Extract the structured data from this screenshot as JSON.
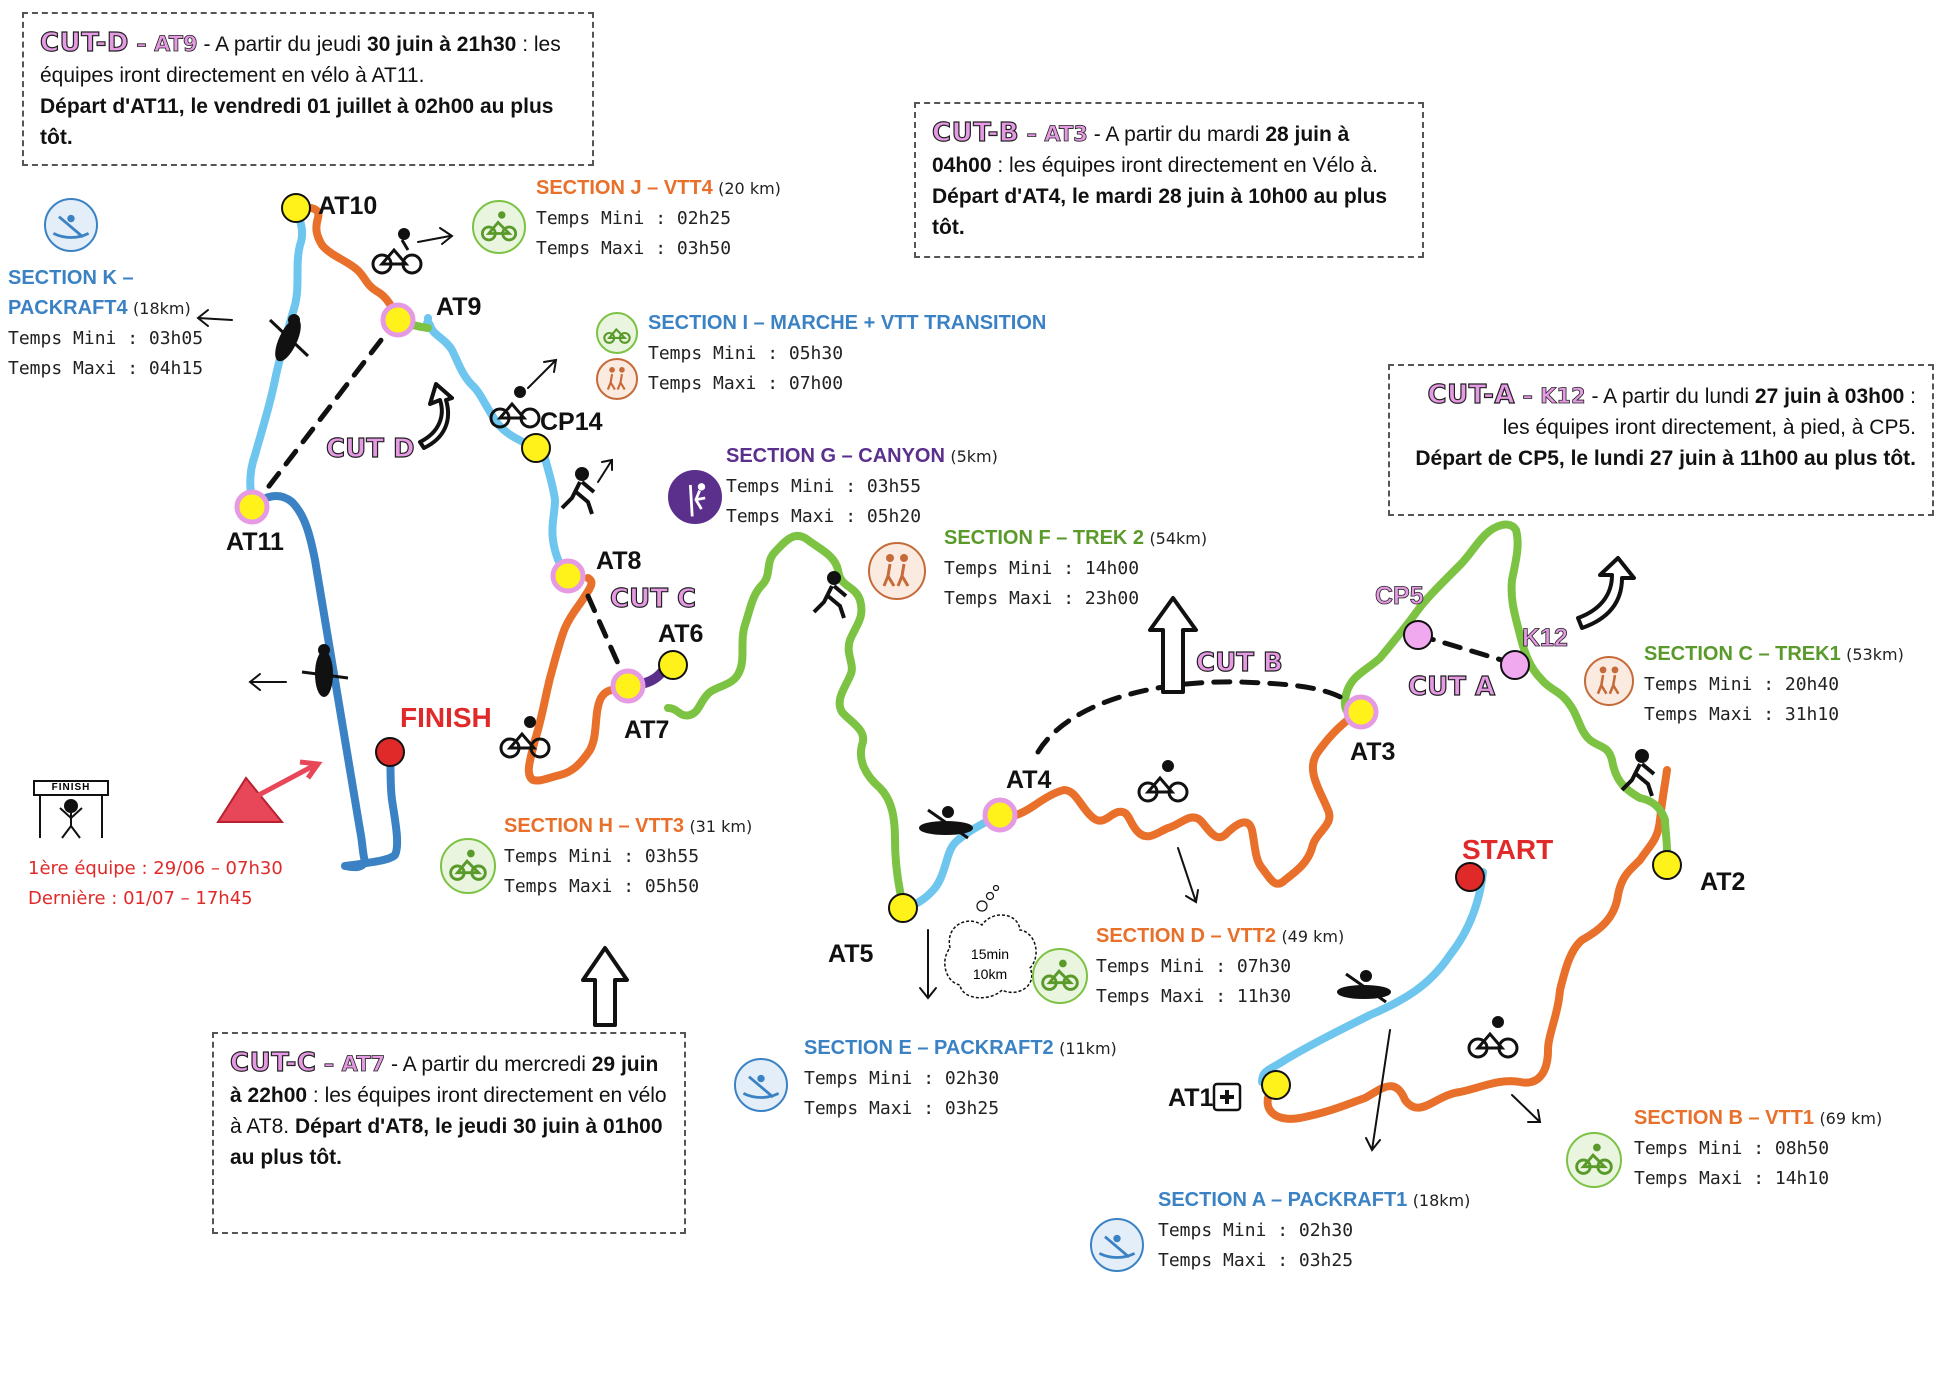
{
  "colors": {
    "trek": "#7cc243",
    "vtt": "#e8702a",
    "packraft": "#6ec6ef",
    "packraft_dark": "#3b82c4",
    "canyon": "#5b2f8c",
    "cut": "#e59ae3",
    "finish_red": "#e02a2a"
  },
  "points": {
    "at10": "AT10",
    "at9": "AT9",
    "cp14": "CP14",
    "at11": "AT11",
    "at8": "AT8",
    "at6": "AT6",
    "at7": "AT7",
    "at4": "AT4",
    "at5": "AT5",
    "at3": "AT3",
    "cp5": "CP5",
    "k12": "K12",
    "at2": "AT2",
    "at1": "AT1",
    "start": "START",
    "finish": "FINISH"
  },
  "cut_labels": {
    "a": "CUT A",
    "b": "CUT B",
    "c": "CUT C",
    "d": "CUT D"
  },
  "cut_boxes": {
    "d": {
      "title": "CUT-D",
      "sep": " – ",
      "point": "AT9",
      "text1": " - A partir du jeudi ",
      "bold1": "30 juin à 21h30",
      "text2": " : les équipes iront directement en vélo à AT11.",
      "bold2": "Départ d'AT11, le vendredi 01 juillet à 02h00 au plus tôt."
    },
    "b": {
      "title": "CUT-B",
      "sep": " – ",
      "point": "AT3",
      "text1": " - A partir du mardi ",
      "bold1": "28 juin à 04h00",
      "text2": " : les équipes iront directement en Vélo à.",
      "bold2": "Départ d'AT4, le mardi 28 juin à 10h00 au plus tôt."
    },
    "a": {
      "title": "CUT-A",
      "sep": " – ",
      "point": "K12",
      "text1": " - A partir du lundi ",
      "bold1": "27 juin à 03h00",
      "text2": " : les équipes iront directement, à pied, à CP5.",
      "bold2": "Départ de CP5, le lundi 27 juin à 11h00 au plus tôt."
    },
    "c": {
      "title": "CUT-C",
      "sep": " – ",
      "point": "AT7",
      "text1": " - A partir du mercredi ",
      "bold1": "29 juin à 22h00",
      "text2": " : les équipes iront directement en vélo à AT8. ",
      "bold2": "Départ d'AT8, le jeudi 30 juin à 01h00 au plus tôt."
    }
  },
  "sections": {
    "j": {
      "title": "SECTION J – VTT4",
      "dist": "(20 km)",
      "mini": "Temps Mini : 02h25",
      "maxi": "Temps Maxi : 03h50"
    },
    "k1": {
      "title": "SECTION K –",
      "title2": "PACKRAFT4",
      "dist": "(18km)",
      "mini": "Temps Mini : 03h05",
      "maxi": "Temps Maxi : 04h15"
    },
    "i": {
      "title": "SECTION I – MARCHE + VTT TRANSITION",
      "mini": "Temps Mini : 05h30",
      "maxi": "Temps Maxi : 07h00"
    },
    "g": {
      "title": "SECTION G – CANYON",
      "dist": "(5km)",
      "mini": "Temps Mini : 03h55",
      "maxi": "Temps Maxi : 05h20"
    },
    "f": {
      "title": "SECTION F – TREK 2",
      "dist": "(54km)",
      "mini": "Temps Mini : 14h00",
      "maxi": "Temps Maxi : 23h00"
    },
    "c": {
      "title": "SECTION C – TREK1",
      "dist": "(53km)",
      "mini": "Temps Mini : 20h40",
      "maxi": "Temps Maxi : 31h10"
    },
    "h": {
      "title": "SECTION H – VTT3",
      "dist": "(31 km)",
      "mini": "Temps Mini : 03h55",
      "maxi": "Temps Maxi : 05h50"
    },
    "d": {
      "title": "SECTION D – VTT2",
      "dist": "(49 km)",
      "mini": "Temps Mini : 07h30",
      "maxi": "Temps Maxi : 11h30"
    },
    "e": {
      "title": "SECTION E – PACKRAFT2",
      "dist": "(11km)",
      "mini": "Temps Mini : 02h30",
      "maxi": "Temps Maxi : 03h25"
    },
    "b": {
      "title": "SECTION B – VTT1",
      "dist": "(69 km)",
      "mini": "Temps Mini : 08h50",
      "maxi": "Temps Maxi : 14h10"
    },
    "a": {
      "title": "SECTION A – PACKRAFT1",
      "dist": "(18km)",
      "mini": "Temps Mini : 02h30",
      "maxi": "Temps Maxi : 03h25"
    }
  },
  "transition": {
    "line1": "15min",
    "line2": "10km"
  },
  "finish_banner": "FINISH",
  "results": {
    "first": "1ère équipe : 29/06 – 07h30",
    "last": "Dernière : 01/07 – 17h45"
  },
  "icons": {
    "bike": "bike-icon",
    "kayak": "kayak-icon",
    "hikers": "hikers-icon",
    "climber": "climber-icon"
  }
}
